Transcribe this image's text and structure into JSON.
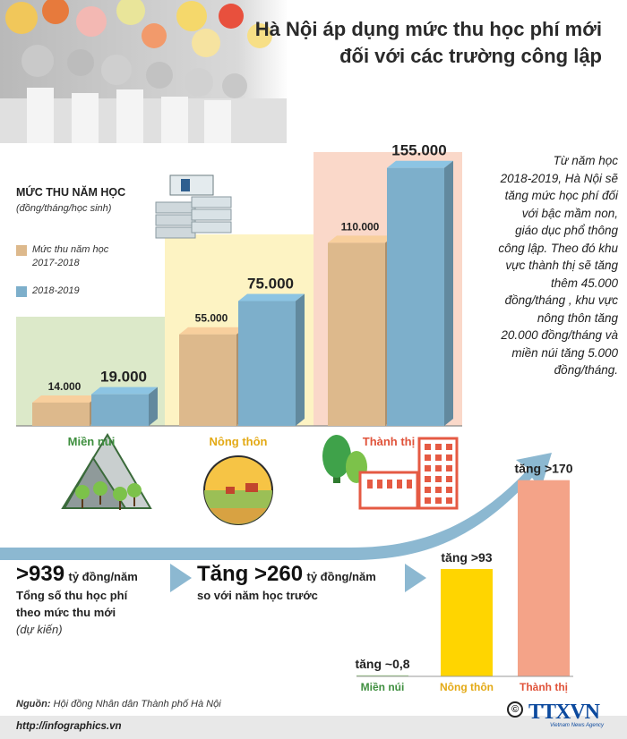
{
  "title": {
    "line1": "Hà Nội áp dụng mức thu học phí mới",
    "line2": "đối với các trường công lập"
  },
  "intro_lines": [
    "Từ năm học",
    "2018-2019, Hà Nội sẽ",
    "tăng mức học phí đối",
    "với bậc mầm non,",
    "giáo dục phổ thông",
    "công lập. Theo đó khu",
    "vực thành thị sẽ tăng",
    "thêm 45.000",
    "đồng/tháng , khu vực",
    "nông thôn tăng",
    "20.000 đồng/tháng và",
    "miền núi tăng 5.000",
    "đồng/tháng."
  ],
  "legend": {
    "title": "MỨC THU NĂM HỌC",
    "subtitle": "(đồng/tháng/học sinh)",
    "items": [
      {
        "label_line1": "Mức thu năm học",
        "label_line2": "2017-2018",
        "color": "#DDB98C"
      },
      {
        "label_line1": "2018-2019",
        "label_line2": "",
        "color": "#7DAFCB"
      }
    ]
  },
  "colors": {
    "mien_nui_bg": "#DCE9C9",
    "nong_thon_bg": "#FDF3C3",
    "thanh_thi_bg": "#FAD8C9",
    "mien_nui_text": "#3F8F3F",
    "nong_thon_text": "#E3A914",
    "thanh_thi_text": "#E0533A",
    "arrow": "#8CB8D1",
    "inc_mien_nui": "#9FCF8A",
    "inc_nong_thon": "#FFD500",
    "inc_thanh_thi": "#F4A388"
  },
  "chart_data": [
    {
      "type": "bar",
      "categories": [
        "Miền núi",
        "Nông thôn",
        "Thành thị"
      ],
      "series": [
        {
          "name": "Mức thu năm học 2017-2018",
          "values": [
            14000,
            55000,
            110000
          ]
        },
        {
          "name": "2018-2019",
          "values": [
            19000,
            75000,
            155000
          ]
        }
      ],
      "value_labels": {
        "s0": [
          "14.000",
          "55.000",
          "110.000"
        ],
        "s1": [
          "19.000",
          "75.000",
          "155.000"
        ]
      },
      "ylim": [
        0,
        160000
      ]
    },
    {
      "type": "bar",
      "categories": [
        "Miền núi",
        "Nông thôn",
        "Thành thị"
      ],
      "values": [
        0.8,
        93,
        170
      ],
      "value_labels": [
        "tăng ~0,8",
        "tăng >93",
        "tăng >170"
      ],
      "ylim": [
        0,
        180
      ]
    }
  ],
  "stats": {
    "total_big": ">939",
    "total_unit": "tỷ đồng/năm",
    "total_line1": "Tổng số thu học phí",
    "total_line2": "theo mức thu mới",
    "total_note": "(dự kiến)",
    "increase_big": "Tăng >260",
    "increase_unit": "tỷ đồng/năm",
    "increase_line": "so với năm học trước"
  },
  "footer": {
    "source_label": "Nguồn:",
    "source_text": "Hội đồng Nhân dân Thành phố Hà Nội",
    "url": "http://infographics.vn",
    "logo_text": "TTXVN",
    "logo_sub": "Vietnam News Agency",
    "copyright": "©"
  },
  "icons": [
    "money-stack-icon",
    "mountain-icon",
    "rural-field-icon",
    "city-icon",
    "trend-arrow-icon"
  ]
}
